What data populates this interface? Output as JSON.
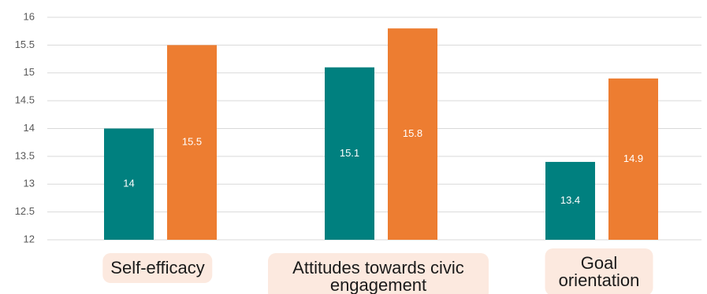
{
  "chart_data": {
    "type": "bar",
    "categories": [
      "Self-efficacy",
      "Attitudes towards civic engagement",
      "Goal orientation"
    ],
    "series": [
      {
        "color": "#00807f",
        "values": [
          14,
          15.1,
          13.4
        ]
      },
      {
        "color": "#ed7d31",
        "values": [
          15.5,
          15.8,
          14.9
        ]
      }
    ],
    "ylim": [
      12,
      16
    ],
    "yticks": [
      12,
      12.5,
      13,
      13.5,
      14,
      14.5,
      15,
      15.5,
      16
    ],
    "grid": true
  }
}
